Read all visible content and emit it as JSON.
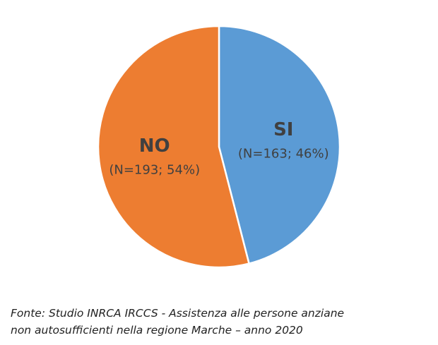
{
  "chart_data": {
    "type": "pie",
    "categories": [
      "SI",
      "NO"
    ],
    "values": [
      46,
      54
    ],
    "value_labels": [
      "(N=163; 46%)",
      "(N=193; 54%)"
    ],
    "colors": [
      "#5b9bd5",
      "#ed7d31"
    ],
    "source": [
      "Fonte: Studio INRCA IRCCS - Assistenza alle persone anziane",
      "non autosufficienti nella regione Marche – anno 2020"
    ]
  }
}
